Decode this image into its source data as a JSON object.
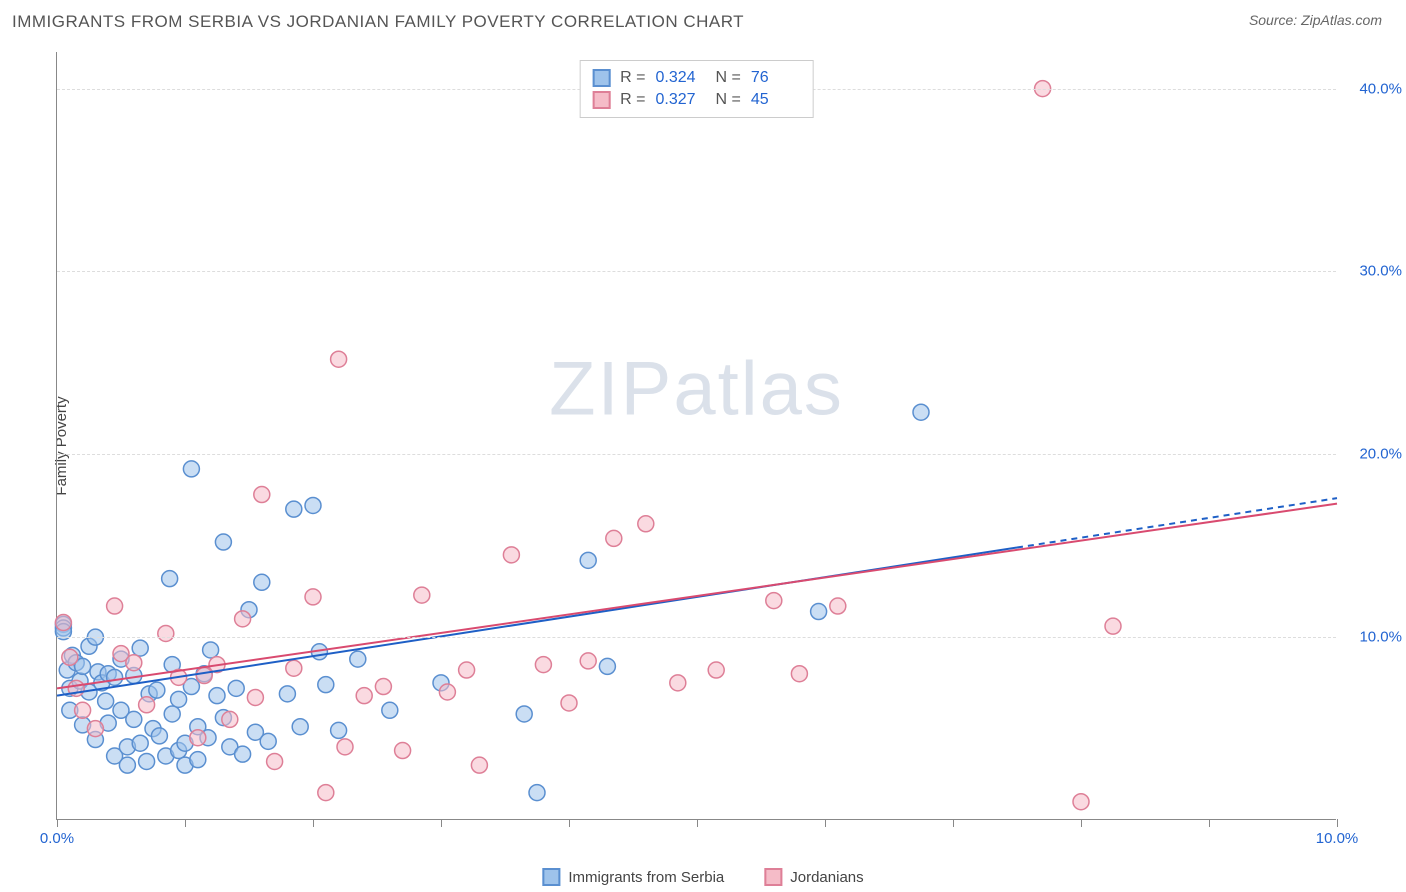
{
  "title": "IMMIGRANTS FROM SERBIA VS JORDANIAN FAMILY POVERTY CORRELATION CHART",
  "source_label": "Source: ZipAtlas.com",
  "watermark": {
    "zip": "ZIP",
    "atlas": "atlas"
  },
  "ylabel": "Family Poverty",
  "chart": {
    "type": "scatter",
    "xlim": [
      0,
      10
    ],
    "ylim": [
      0,
      42
    ],
    "xticks": [
      0,
      1,
      2,
      3,
      4,
      5,
      6,
      7,
      8,
      9,
      10
    ],
    "xtick_labels_visible": {
      "0": "0.0%",
      "10": "10.0%"
    },
    "yticks": [
      10,
      20,
      30,
      40
    ],
    "ytick_labels": [
      "10.0%",
      "20.0%",
      "30.0%",
      "40.0%"
    ],
    "background_color": "#ffffff",
    "grid_color": "#dddddd",
    "axis_color": "#888888",
    "tick_label_color": "#2264d1",
    "marker_radius": 8,
    "marker_stroke_width": 1.5,
    "series": [
      {
        "name": "Immigrants from Serbia",
        "fill_color": "#9ec3eb",
        "stroke_color": "#5a8fd0",
        "fill_opacity": 0.55,
        "R": "0.324",
        "N": "76",
        "regression": {
          "x1": 0,
          "y1": 6.8,
          "x2": 10,
          "y2": 17.6,
          "color": "#1e5fc6",
          "width": 2,
          "dash_tail": true
        },
        "points": [
          [
            0.05,
            10.7
          ],
          [
            0.05,
            10.5
          ],
          [
            0.05,
            10.3
          ],
          [
            0.08,
            8.2
          ],
          [
            0.1,
            7.2
          ],
          [
            0.1,
            6.0
          ],
          [
            0.12,
            9.0
          ],
          [
            0.15,
            8.6
          ],
          [
            0.18,
            7.6
          ],
          [
            0.2,
            8.4
          ],
          [
            0.2,
            5.2
          ],
          [
            0.25,
            9.5
          ],
          [
            0.25,
            7.0
          ],
          [
            0.3,
            10.0
          ],
          [
            0.3,
            4.4
          ],
          [
            0.32,
            8.1
          ],
          [
            0.35,
            7.5
          ],
          [
            0.38,
            6.5
          ],
          [
            0.4,
            8.0
          ],
          [
            0.4,
            5.3
          ],
          [
            0.45,
            7.8
          ],
          [
            0.45,
            3.5
          ],
          [
            0.5,
            8.8
          ],
          [
            0.5,
            6.0
          ],
          [
            0.55,
            4.0
          ],
          [
            0.55,
            3.0
          ],
          [
            0.6,
            7.9
          ],
          [
            0.6,
            5.5
          ],
          [
            0.65,
            9.4
          ],
          [
            0.65,
            4.2
          ],
          [
            0.7,
            3.2
          ],
          [
            0.72,
            6.9
          ],
          [
            0.75,
            5.0
          ],
          [
            0.78,
            7.1
          ],
          [
            0.8,
            4.6
          ],
          [
            0.85,
            3.5
          ],
          [
            0.88,
            13.2
          ],
          [
            0.9,
            8.5
          ],
          [
            0.9,
            5.8
          ],
          [
            0.95,
            6.6
          ],
          [
            0.95,
            3.8
          ],
          [
            1.0,
            4.2
          ],
          [
            1.0,
            3.0
          ],
          [
            1.05,
            19.2
          ],
          [
            1.05,
            7.3
          ],
          [
            1.1,
            5.1
          ],
          [
            1.1,
            3.3
          ],
          [
            1.15,
            8.0
          ],
          [
            1.18,
            4.5
          ],
          [
            1.2,
            9.3
          ],
          [
            1.25,
            6.8
          ],
          [
            1.3,
            15.2
          ],
          [
            1.3,
            5.6
          ],
          [
            1.35,
            4.0
          ],
          [
            1.4,
            7.2
          ],
          [
            1.45,
            3.6
          ],
          [
            1.5,
            11.5
          ],
          [
            1.55,
            4.8
          ],
          [
            1.6,
            13.0
          ],
          [
            1.65,
            4.3
          ],
          [
            1.8,
            6.9
          ],
          [
            1.85,
            17.0
          ],
          [
            1.9,
            5.1
          ],
          [
            2.0,
            17.2
          ],
          [
            2.05,
            9.2
          ],
          [
            2.1,
            7.4
          ],
          [
            2.2,
            4.9
          ],
          [
            2.35,
            8.8
          ],
          [
            2.6,
            6.0
          ],
          [
            3.0,
            7.5
          ],
          [
            3.65,
            5.8
          ],
          [
            3.75,
            1.5
          ],
          [
            4.15,
            14.2
          ],
          [
            4.3,
            8.4
          ],
          [
            5.95,
            11.4
          ],
          [
            6.75,
            22.3
          ]
        ]
      },
      {
        "name": "Jordanians",
        "fill_color": "#f5bcc8",
        "stroke_color": "#de7f97",
        "fill_opacity": 0.55,
        "R": "0.327",
        "N": "45",
        "regression": {
          "x1": 0,
          "y1": 7.2,
          "x2": 10,
          "y2": 17.3,
          "color": "#d94a6f",
          "width": 2
        },
        "points": [
          [
            0.05,
            10.8
          ],
          [
            0.1,
            8.9
          ],
          [
            0.15,
            7.2
          ],
          [
            0.2,
            6.0
          ],
          [
            0.3,
            5.0
          ],
          [
            0.45,
            11.7
          ],
          [
            0.5,
            9.1
          ],
          [
            0.6,
            8.6
          ],
          [
            0.7,
            6.3
          ],
          [
            0.85,
            10.2
          ],
          [
            0.95,
            7.8
          ],
          [
            1.1,
            4.5
          ],
          [
            1.15,
            7.9
          ],
          [
            1.25,
            8.5
          ],
          [
            1.35,
            5.5
          ],
          [
            1.45,
            11.0
          ],
          [
            1.55,
            6.7
          ],
          [
            1.6,
            17.8
          ],
          [
            1.7,
            3.2
          ],
          [
            1.85,
            8.3
          ],
          [
            2.0,
            12.2
          ],
          [
            2.1,
            1.5
          ],
          [
            2.2,
            25.2
          ],
          [
            2.25,
            4.0
          ],
          [
            2.4,
            6.8
          ],
          [
            2.55,
            7.3
          ],
          [
            2.7,
            3.8
          ],
          [
            2.85,
            12.3
          ],
          [
            3.05,
            7.0
          ],
          [
            3.2,
            8.2
          ],
          [
            3.3,
            3.0
          ],
          [
            3.55,
            14.5
          ],
          [
            3.8,
            8.5
          ],
          [
            4.0,
            6.4
          ],
          [
            4.15,
            8.7
          ],
          [
            4.35,
            15.4
          ],
          [
            4.6,
            16.2
          ],
          [
            4.85,
            7.5
          ],
          [
            5.15,
            8.2
          ],
          [
            5.6,
            12.0
          ],
          [
            5.8,
            8.0
          ],
          [
            6.1,
            11.7
          ],
          [
            7.7,
            40.0
          ],
          [
            8.0,
            1.0
          ],
          [
            8.25,
            10.6
          ]
        ]
      }
    ]
  },
  "legend": {
    "series1_label": "Immigrants from Serbia",
    "series2_label": "Jordanians"
  }
}
